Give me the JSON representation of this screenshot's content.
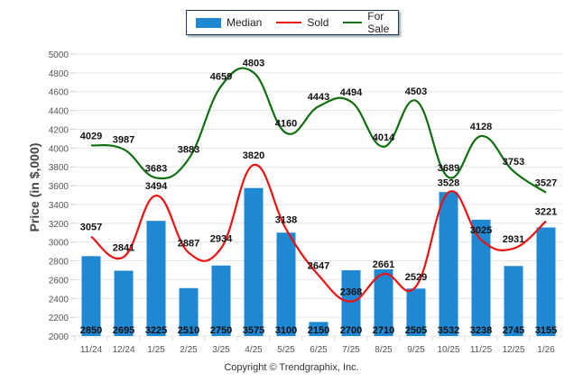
{
  "legend": {
    "items": [
      {
        "label": "Median",
        "color": "#1e88d2",
        "kind": "bar"
      },
      {
        "label": "Sold",
        "color": "#ee1111",
        "kind": "line"
      },
      {
        "label": "For Sale",
        "color": "#0f6e0f",
        "kind": "line"
      }
    ]
  },
  "copyright": "Copyright © Trendgraphix, Inc.",
  "chart_data": {
    "type": "bar",
    "title": "",
    "xlabel": "",
    "ylabel": "Price (in $,000)",
    "ylim": [
      2000,
      5000
    ],
    "yticks": [
      2000,
      2200,
      2400,
      2600,
      2800,
      3000,
      3200,
      3400,
      3600,
      3800,
      4000,
      4200,
      4400,
      4600,
      4800,
      5000
    ],
    "grid": true,
    "legend_position": "top-center",
    "categories": [
      "11/24",
      "12/24",
      "1/25",
      "2/25",
      "3/25",
      "4/25",
      "5/25",
      "6/25",
      "7/25",
      "8/25",
      "9/25",
      "10/25",
      "11/25",
      "12/25",
      "1/26"
    ],
    "series": [
      {
        "name": "Median",
        "type": "bar",
        "color": "#1e88d2",
        "values": [
          2850,
          2695,
          3225,
          2510,
          2750,
          3575,
          3100,
          2150,
          2700,
          2710,
          2505,
          3532,
          3238,
          2745,
          3155
        ]
      },
      {
        "name": "Sold",
        "type": "line",
        "color": "#ee1111",
        "values": [
          3057,
          2841,
          3494,
          2887,
          2934,
          3820,
          3138,
          2647,
          2368,
          2661,
          2529,
          3528,
          3025,
          2931,
          3221
        ]
      },
      {
        "name": "For Sale",
        "type": "line",
        "color": "#0f6e0f",
        "values": [
          4029,
          3987,
          3683,
          3883,
          4659,
          4803,
          4160,
          4443,
          4494,
          4014,
          4503,
          3689,
          4128,
          3753,
          3527
        ]
      }
    ]
  }
}
